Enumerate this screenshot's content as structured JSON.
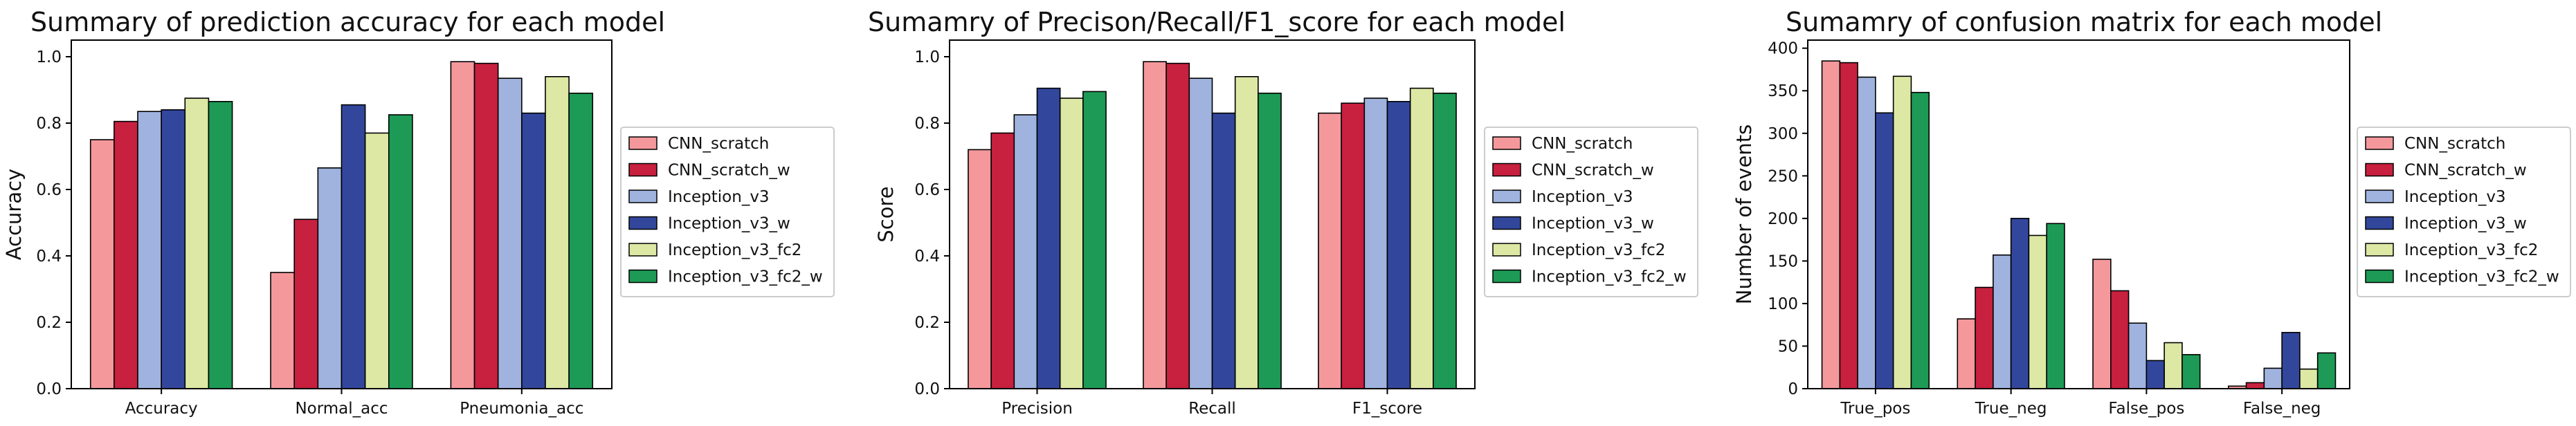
{
  "chart_data": [
    {
      "type": "bar",
      "title": "Summary of prediction accuracy for each model",
      "xlabel": "",
      "ylabel": "Accuracy",
      "categories": [
        "Accuracy",
        "Normal_acc",
        "Pneumonia_acc"
      ],
      "yticks": [
        "0.0",
        "0.2",
        "0.4",
        "0.6",
        "0.8",
        "1.0"
      ],
      "ylim": [
        0,
        1.05
      ],
      "legend_position": "center-right-outside",
      "grid": false,
      "series": [
        {
          "name": "CNN_scratch",
          "color": "#f4989c",
          "values": [
            0.75,
            0.35,
            0.985
          ]
        },
        {
          "name": "CNN_scratch_w",
          "color": "#c8203f",
          "values": [
            0.805,
            0.51,
            0.98
          ]
        },
        {
          "name": "Inception_v3",
          "color": "#9fb3de",
          "values": [
            0.835,
            0.665,
            0.935
          ]
        },
        {
          "name": "Inception_v3_w",
          "color": "#32479c",
          "values": [
            0.84,
            0.855,
            0.83
          ]
        },
        {
          "name": "Inception_v3_fc2",
          "color": "#dde8a4",
          "values": [
            0.875,
            0.77,
            0.94
          ]
        },
        {
          "name": "Inception_v3_fc2_w",
          "color": "#1d9a55",
          "values": [
            0.865,
            0.825,
            0.89
          ]
        }
      ]
    },
    {
      "type": "bar",
      "title": "Sumamry of Precison/Recall/F1_score for each model",
      "xlabel": "",
      "ylabel": "Score",
      "categories": [
        "Precision",
        "Recall",
        "F1_score"
      ],
      "yticks": [
        "0.0",
        "0.2",
        "0.4",
        "0.6",
        "0.8",
        "1.0"
      ],
      "ylim": [
        0,
        1.05
      ],
      "legend_position": "center-right-outside",
      "grid": false,
      "series": [
        {
          "name": "CNN_scratch",
          "color": "#f4989c",
          "values": [
            0.72,
            0.985,
            0.83
          ]
        },
        {
          "name": "CNN_scratch_w",
          "color": "#c8203f",
          "values": [
            0.77,
            0.98,
            0.86
          ]
        },
        {
          "name": "Inception_v3",
          "color": "#9fb3de",
          "values": [
            0.825,
            0.935,
            0.875
          ]
        },
        {
          "name": "Inception_v3_w",
          "color": "#32479c",
          "values": [
            0.905,
            0.83,
            0.865
          ]
        },
        {
          "name": "Inception_v3_fc2",
          "color": "#dde8a4",
          "values": [
            0.875,
            0.94,
            0.905
          ]
        },
        {
          "name": "Inception_v3_fc2_w",
          "color": "#1d9a55",
          "values": [
            0.895,
            0.89,
            0.89
          ]
        }
      ]
    },
    {
      "type": "bar",
      "title": "Sumamry of confusion matrix for each model",
      "xlabel": "",
      "ylabel": "Number of events",
      "categories": [
        "True_pos",
        "True_neg",
        "False_pos",
        "False_neg"
      ],
      "yticks": [
        "0",
        "50",
        "100",
        "150",
        "200",
        "250",
        "300",
        "350",
        "400"
      ],
      "ylim": [
        0,
        409.5
      ],
      "legend_position": "center-right-outside",
      "grid": false,
      "series": [
        {
          "name": "CNN_scratch",
          "color": "#f4989c",
          "values": [
            385,
            82,
            152,
            3
          ]
        },
        {
          "name": "CNN_scratch_w",
          "color": "#c8203f",
          "values": [
            383,
            119,
            115,
            7
          ]
        },
        {
          "name": "Inception_v3",
          "color": "#9fb3de",
          "values": [
            366,
            157,
            77,
            24
          ]
        },
        {
          "name": "Inception_v3_w",
          "color": "#32479c",
          "values": [
            324,
            200,
            33,
            66
          ]
        },
        {
          "name": "Inception_v3_fc2",
          "color": "#dde8a4",
          "values": [
            367,
            180,
            54,
            23
          ]
        },
        {
          "name": "Inception_v3_fc2_w",
          "color": "#1d9a55",
          "values": [
            348,
            194,
            40,
            42
          ]
        }
      ]
    }
  ]
}
